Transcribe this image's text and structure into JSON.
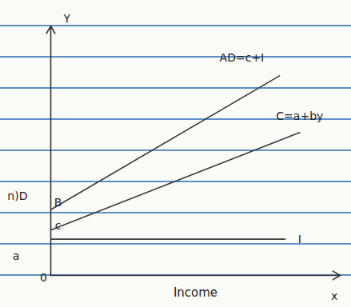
{
  "chart_data": {
    "type": "line",
    "xlabel": "Income",
    "ylabel": "Y",
    "xlim": [
      0,
      10
    ],
    "ylim": [
      0,
      11
    ],
    "xticks": [],
    "yticks": [],
    "tick_labels": false,
    "grid": false,
    "series": [
      {
        "name": "AD=c+I",
        "color": "#3a3a3a",
        "x": [
          0,
          7.9
        ],
        "values": [
          2.9,
          8.8
        ],
        "label_at": [
          6.6,
          9.6
        ]
      },
      {
        "name": "C=a+by",
        "color": "#3a3a3a",
        "x": [
          0,
          8.6
        ],
        "values": [
          2.0,
          6.3
        ],
        "label_at": [
          8.6,
          7.0
        ]
      },
      {
        "name": "I",
        "color": "#3a3a3a",
        "x": [
          0,
          8.1
        ],
        "values": [
          1.6,
          1.6
        ],
        "label_at": [
          8.6,
          1.6
        ]
      }
    ],
    "annotations": [
      {
        "text": "x",
        "x": 9.8,
        "y": -0.9
      },
      {
        "text": "0",
        "x": -0.25,
        "y": -0.1
      },
      {
        "text": "a",
        "x": -1.2,
        "y": 0.85
      },
      {
        "text": "c",
        "x": 0.25,
        "y": 2.2
      },
      {
        "text": "B",
        "x": 0.25,
        "y": 3.2
      },
      {
        "text": "n)D",
        "x": -1.15,
        "y": 3.5
      }
    ]
  }
}
